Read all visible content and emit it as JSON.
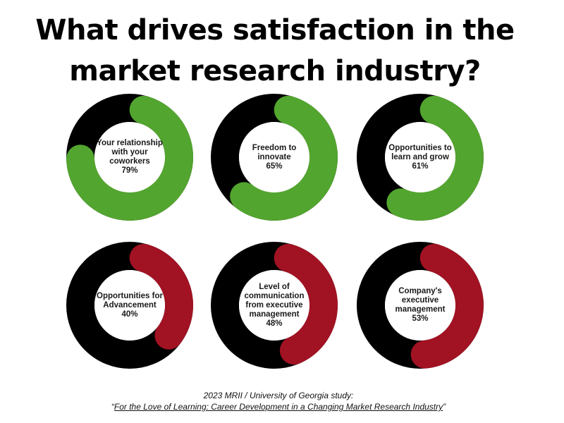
{
  "title": {
    "line1": "What drives satisfaction in the",
    "line2": "market research industry?"
  },
  "colors": {
    "base": "#000000",
    "positive": "#52a52e",
    "negative": "#a11223",
    "hole": "#ffffff"
  },
  "chart_data": [
    {
      "type": "pie",
      "variant": "donut",
      "label": "Your relationship with your coworkers",
      "value_text": "79%",
      "value": 79,
      "color": "#52a52e",
      "remainder_color": "#000000"
    },
    {
      "type": "pie",
      "variant": "donut",
      "label": "Freedom to innovate",
      "value_text": "65%",
      "value": 65,
      "color": "#52a52e",
      "remainder_color": "#000000"
    },
    {
      "type": "pie",
      "variant": "donut",
      "label": "Opportunities to learn and grow",
      "value_text": "61%",
      "value": 61,
      "color": "#52a52e",
      "remainder_color": "#000000"
    },
    {
      "type": "pie",
      "variant": "donut",
      "label": "Opportunities for Advancement",
      "value_text": "40%",
      "value": 40,
      "color": "#a11223",
      "remainder_color": "#000000"
    },
    {
      "type": "pie",
      "variant": "donut",
      "label": "Level of communication from executive management",
      "value_text": "48%",
      "value": 48,
      "color": "#a11223",
      "remainder_color": "#000000"
    },
    {
      "type": "pie",
      "variant": "donut",
      "label": "Company's executive management",
      "value_text": "53%",
      "value": 53,
      "color": "#a11223",
      "remainder_color": "#000000"
    }
  ],
  "source": {
    "line1": "2023 MRII / University of Georgia study:",
    "open_quote": "“",
    "study_title": "For the Love of Learning: Career Development in a Changing Market Research Industry",
    "close_quote": "”"
  }
}
